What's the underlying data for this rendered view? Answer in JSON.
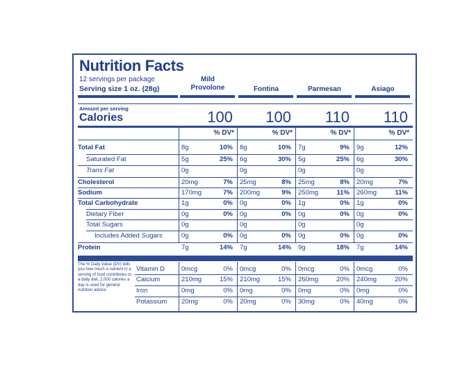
{
  "header": {
    "title": "Nutrition Facts",
    "servings": "12 servings per package",
    "serving_size": "Serving size 1 oz. (28g)",
    "amount_per_serving": "Amount per serving",
    "calories_label": "Calories",
    "dv_header": "% DV*"
  },
  "cheeses": [
    {
      "name": "Mild Provolone",
      "calories": "100"
    },
    {
      "name": "Fontina",
      "calories": "100"
    },
    {
      "name": "Parmesan",
      "calories": "110"
    },
    {
      "name": "Asiago",
      "calories": "110"
    }
  ],
  "nutrients": [
    {
      "label": "Total Fat",
      "values": [
        [
          "8g",
          "10%"
        ],
        [
          "8g",
          "10%"
        ],
        [
          "7g",
          "9%"
        ],
        [
          "9g",
          "12%"
        ]
      ]
    },
    {
      "label": "Saturated Fat",
      "values": [
        [
          "5g",
          "25%"
        ],
        [
          "6g",
          "30%"
        ],
        [
          "5g",
          "25%"
        ],
        [
          "6g",
          "30%"
        ]
      ]
    },
    {
      "label": "Trans Fat",
      "values": [
        [
          "0g",
          ""
        ],
        [
          "0g",
          ""
        ],
        [
          "0g",
          ""
        ],
        [
          "0g",
          ""
        ]
      ]
    },
    {
      "label": "Cholesterol",
      "values": [
        [
          "20mg",
          "7%"
        ],
        [
          "25mg",
          "8%"
        ],
        [
          "25mg",
          "8%"
        ],
        [
          "20mg",
          "7%"
        ]
      ]
    },
    {
      "label": "Sodium",
      "values": [
        [
          "170mg",
          "7%"
        ],
        [
          "200mg",
          "9%"
        ],
        [
          "250mg",
          "11%"
        ],
        [
          "260mg",
          "11%"
        ]
      ]
    },
    {
      "label": "Total Carbohydrate",
      "values": [
        [
          "1g",
          "0%"
        ],
        [
          "0g",
          "0%"
        ],
        [
          "1g",
          "0%"
        ],
        [
          "1g",
          "0%"
        ]
      ]
    },
    {
      "label": "Dietary Fiber",
      "values": [
        [
          "0g",
          "0%"
        ],
        [
          "0g",
          "0%"
        ],
        [
          "0g",
          "0%"
        ],
        [
          "0g",
          "0%"
        ]
      ]
    },
    {
      "label": "Total Sugars",
      "values": [
        [
          "0g",
          ""
        ],
        [
          "0g",
          ""
        ],
        [
          "0g",
          ""
        ],
        [
          "0g",
          ""
        ]
      ]
    },
    {
      "label": "Includes Added Sugars",
      "values": [
        [
          "0g",
          "0%"
        ],
        [
          "0g",
          "0%"
        ],
        [
          "0g",
          "0%"
        ],
        [
          "0g",
          "0%"
        ]
      ]
    },
    {
      "label": "Protein",
      "values": [
        [
          "7g",
          "14%"
        ],
        [
          "7g",
          "14%"
        ],
        [
          "9g",
          "18%"
        ],
        [
          "7g",
          "14%"
        ]
      ]
    }
  ],
  "vitamins": [
    {
      "label": "Vitamin D",
      "values": [
        [
          "0mcg",
          "0%"
        ],
        [
          "0mcg",
          "0%"
        ],
        [
          "0mcg",
          "0%"
        ],
        [
          "0mcg",
          "0%"
        ]
      ]
    },
    {
      "label": "Calcium",
      "values": [
        [
          "210mg",
          "15%"
        ],
        [
          "210mg",
          "15%"
        ],
        [
          "260mg",
          "20%"
        ],
        [
          "240mg",
          "20%"
        ]
      ]
    },
    {
      "label": "Iron",
      "values": [
        [
          "0mg",
          "0%"
        ],
        [
          "0mg",
          "0%"
        ],
        [
          "0mg",
          "0%"
        ],
        [
          "0mg",
          "0%"
        ]
      ]
    },
    {
      "label": "Potassium",
      "values": [
        [
          "20mg",
          "0%"
        ],
        [
          "20mg",
          "0%"
        ],
        [
          "30mg",
          "0%"
        ],
        [
          "40mg",
          "0%"
        ]
      ]
    }
  ],
  "footnote": "The % Daily Value (DV) tells you how much a nutrient in a serving of food contributes to a daily diet. 2,000 calories a day is used for general nutrition advice."
}
